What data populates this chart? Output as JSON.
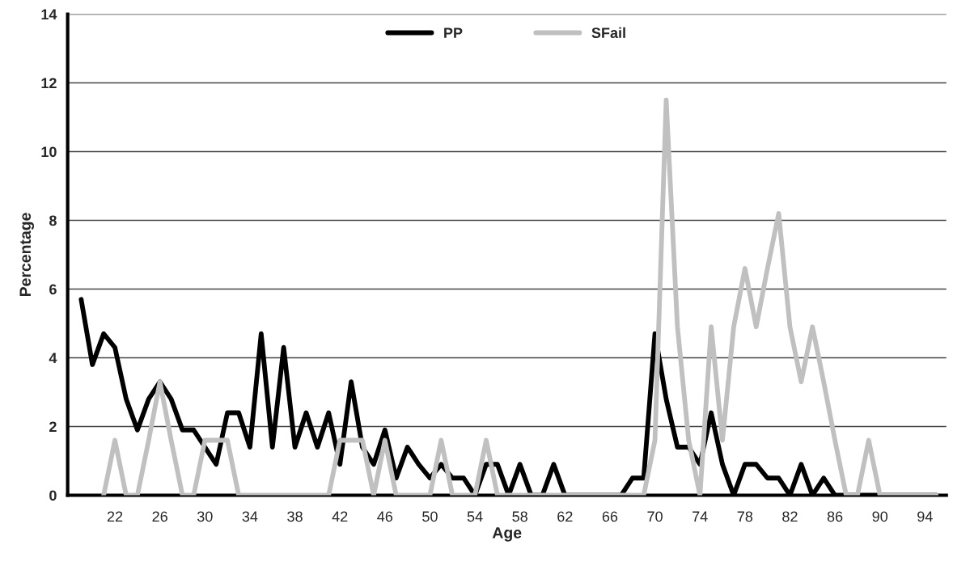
{
  "chart_data": {
    "type": "line",
    "xlabel": "Age",
    "ylabel": "Percentage",
    "x": [
      19,
      20,
      21,
      22,
      23,
      24,
      25,
      26,
      27,
      28,
      29,
      30,
      31,
      32,
      33,
      34,
      35,
      36,
      37,
      38,
      39,
      40,
      41,
      42,
      43,
      44,
      45,
      46,
      47,
      48,
      49,
      50,
      51,
      52,
      53,
      54,
      55,
      56,
      57,
      58,
      59,
      60,
      61,
      62,
      63,
      64,
      65,
      66,
      67,
      68,
      69,
      70,
      71,
      72,
      73,
      74,
      75,
      76,
      77,
      78,
      79,
      80,
      81,
      82,
      83,
      84,
      85,
      86,
      87,
      88,
      89,
      90,
      91,
      92,
      93,
      94,
      95
    ],
    "xlim": [
      17.8,
      95.9
    ],
    "xticks": [
      22,
      26,
      30,
      34,
      38,
      42,
      46,
      50,
      54,
      58,
      62,
      66,
      70,
      74,
      78,
      82,
      86,
      90,
      94
    ],
    "ylim": [
      0,
      14
    ],
    "yticks": [
      0,
      2,
      4,
      6,
      8,
      10,
      12,
      14
    ],
    "grid": "y",
    "legend": "top",
    "line_style": "solid",
    "marker": "none",
    "series": [
      {
        "name": "PP",
        "color": "#000000",
        "values": [
          5.7,
          3.8,
          4.7,
          4.3,
          2.8,
          1.9,
          2.8,
          3.3,
          2.8,
          1.9,
          1.9,
          1.4,
          0.9,
          2.4,
          2.4,
          1.4,
          4.7,
          1.4,
          4.3,
          1.4,
          2.4,
          1.4,
          2.4,
          0.9,
          3.3,
          1.4,
          0.9,
          1.9,
          0.5,
          1.4,
          0.9,
          0.5,
          0.9,
          0.5,
          0.5,
          0,
          0.9,
          0.9,
          0,
          0.9,
          0,
          0,
          0.9,
          0,
          0,
          0,
          0,
          0,
          0,
          0.5,
          0.5,
          4.7,
          2.8,
          1.4,
          1.4,
          0.9,
          2.4,
          0.9,
          0,
          0.9,
          0.9,
          0.5,
          0.5,
          0,
          0.9,
          0,
          0.5,
          0,
          0,
          0,
          0,
          0,
          0,
          0,
          0,
          0,
          0
        ]
      },
      {
        "name": "SFail",
        "color": "#c0c0c0",
        "values": [
          null,
          null,
          0,
          1.6,
          0,
          0,
          1.6,
          3.3,
          1.6,
          0,
          0,
          1.6,
          1.6,
          1.6,
          0,
          0,
          0,
          0,
          0,
          0,
          0,
          0,
          0,
          1.6,
          1.6,
          1.6,
          0,
          1.6,
          0,
          0,
          0,
          0,
          1.6,
          0,
          0,
          0,
          1.6,
          0,
          0,
          0,
          0,
          0,
          0,
          0,
          0,
          0,
          0,
          0,
          0,
          0,
          0,
          1.6,
          11.5,
          4.9,
          1.6,
          0,
          4.9,
          1.6,
          4.9,
          6.6,
          4.9,
          6.6,
          8.2,
          4.9,
          3.3,
          4.9,
          3.3,
          1.6,
          0,
          0,
          1.6,
          0,
          0,
          0,
          0,
          0,
          0
        ]
      }
    ]
  }
}
